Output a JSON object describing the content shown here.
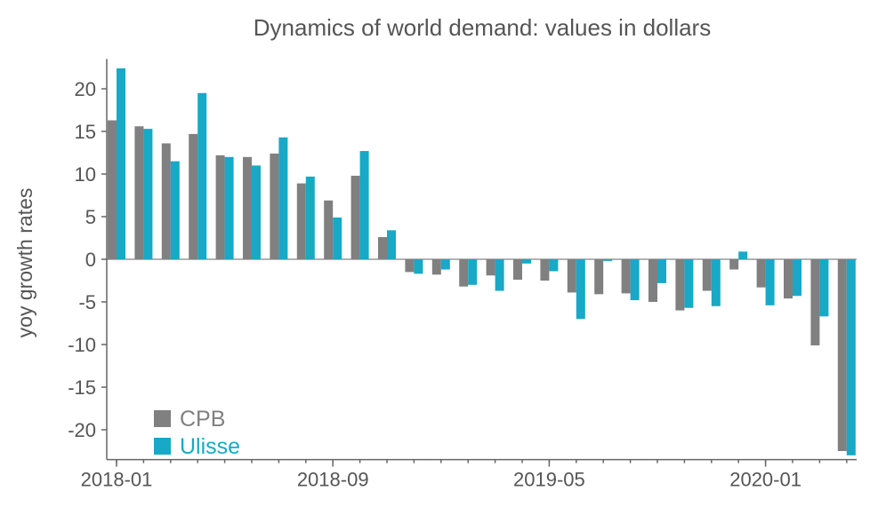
{
  "chart_data": {
    "type": "bar",
    "title": "Dynamics of world demand: values in dollars",
    "xlabel": "",
    "ylabel": "yoy growth rates",
    "ylim": [
      -23.5,
      23.5
    ],
    "yticks": [
      20,
      15,
      10,
      5,
      0,
      -5,
      -10,
      -15,
      -20
    ],
    "ytick_labels": [
      "20",
      "15",
      "10",
      "5",
      "0",
      "-5",
      "-10",
      "-15",
      "-20"
    ],
    "categories": [
      "2018-01",
      "2018-02",
      "2018-03",
      "2018-04",
      "2018-05",
      "2018-06",
      "2018-07",
      "2018-08",
      "2018-09",
      "2018-10",
      "2018-11",
      "2018-12",
      "2019-01",
      "2019-02",
      "2019-03",
      "2019-04",
      "2019-05",
      "2019-06",
      "2019-07",
      "2019-08",
      "2019-09",
      "2019-10",
      "2019-11",
      "2019-12",
      "2020-01",
      "2020-02",
      "2020-03",
      "2020-04"
    ],
    "xtick_labels": [
      {
        "index": 0,
        "label": "2018-01"
      },
      {
        "index": 8,
        "label": "2018-09"
      },
      {
        "index": 16,
        "label": "2019-05"
      },
      {
        "index": 24,
        "label": "2020-01"
      }
    ],
    "series": [
      {
        "name": "CPB",
        "color": "#808080",
        "values": [
          16.3,
          15.6,
          13.6,
          14.7,
          12.2,
          12.0,
          12.4,
          8.9,
          6.9,
          9.8,
          2.6,
          -1.5,
          -1.8,
          -3.2,
          -1.9,
          -2.4,
          -2.5,
          -3.9,
          -4.1,
          -4.0,
          -5.0,
          -6.0,
          -3.7,
          -1.2,
          -3.3,
          -4.6,
          -10.1,
          -22.5
        ]
      },
      {
        "name": "Ulisse",
        "color": "#17A9C6",
        "values": [
          22.4,
          15.3,
          11.5,
          19.5,
          12.0,
          11.0,
          14.3,
          9.7,
          4.9,
          12.7,
          3.4,
          -1.7,
          -1.2,
          -3.0,
          -3.7,
          -0.5,
          -1.4,
          -7.0,
          -0.2,
          -4.8,
          -2.8,
          -5.7,
          -5.5,
          0.9,
          -5.4,
          -4.3,
          -6.7,
          -23.0
        ]
      }
    ],
    "legend": {
      "placement": "bottom-left"
    },
    "grid": false
  }
}
